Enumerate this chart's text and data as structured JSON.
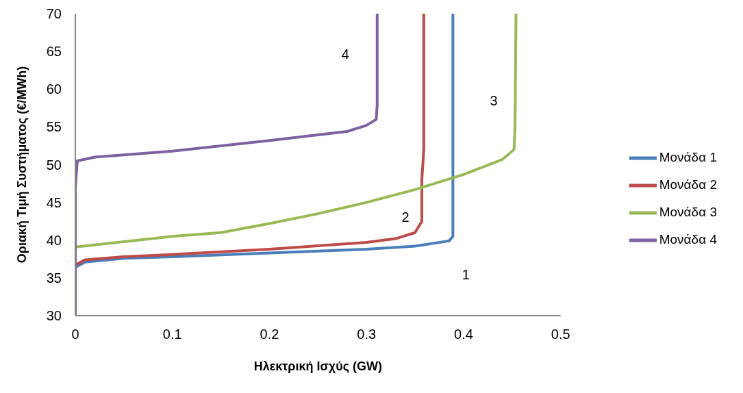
{
  "chart_data": {
    "type": "line",
    "xlabel": "Ηλεκτρική Ισχύς (GW)",
    "ylabel": "Οριακή Τιμή Συστήματος (€/MWh)",
    "xlim": [
      0,
      0.5
    ],
    "xticks": [
      0,
      0.1,
      0.2,
      0.3,
      0.4,
      0.5
    ],
    "ylim": [
      30,
      70
    ],
    "yticks": [
      30,
      35,
      40,
      45,
      50,
      55,
      60,
      65,
      70
    ],
    "grid": false,
    "legend": "right",
    "marker": "none",
    "line_style": "solid",
    "series": [
      {
        "name": "Μονάδα 1",
        "color": "#4a7ebb",
        "x": [
          0,
          0.01,
          0.05,
          0.1,
          0.2,
          0.3,
          0.35,
          0.385,
          0.389,
          0.389
        ],
        "values": [
          36.4,
          37.1,
          37.6,
          37.8,
          38.3,
          38.8,
          39.2,
          39.9,
          40.5,
          70
        ]
      },
      {
        "name": "Μονάδα 2",
        "color": "#be4b48",
        "x": [
          0,
          0.01,
          0.05,
          0.1,
          0.2,
          0.3,
          0.33,
          0.35,
          0.357,
          0.357,
          0.359,
          0.359
        ],
        "values": [
          36.7,
          37.4,
          37.8,
          38.1,
          38.8,
          39.7,
          40.2,
          41,
          42.5,
          48,
          52,
          70
        ]
      },
      {
        "name": "Μονάδα 3",
        "color": "#98b954",
        "x": [
          0,
          0.1,
          0.15,
          0.2,
          0.25,
          0.3,
          0.35,
          0.4,
          0.44,
          0.452,
          0.453,
          0.454
        ],
        "values": [
          39.1,
          40.5,
          41,
          42.2,
          43.5,
          45,
          46.7,
          48.7,
          50.7,
          52,
          55,
          70
        ]
      },
      {
        "name": "Μονάδα 4",
        "color": "#7d60a0",
        "x": [
          0,
          0,
          0.002,
          0.02,
          0.1,
          0.2,
          0.28,
          0.3,
          0.31,
          0.311,
          0.311
        ],
        "values": [
          30,
          47,
          50.5,
          51,
          51.8,
          53.2,
          54.4,
          55.2,
          56,
          58,
          70
        ]
      }
    ],
    "annotations": [
      "1",
      "2",
      "3",
      "4"
    ]
  }
}
